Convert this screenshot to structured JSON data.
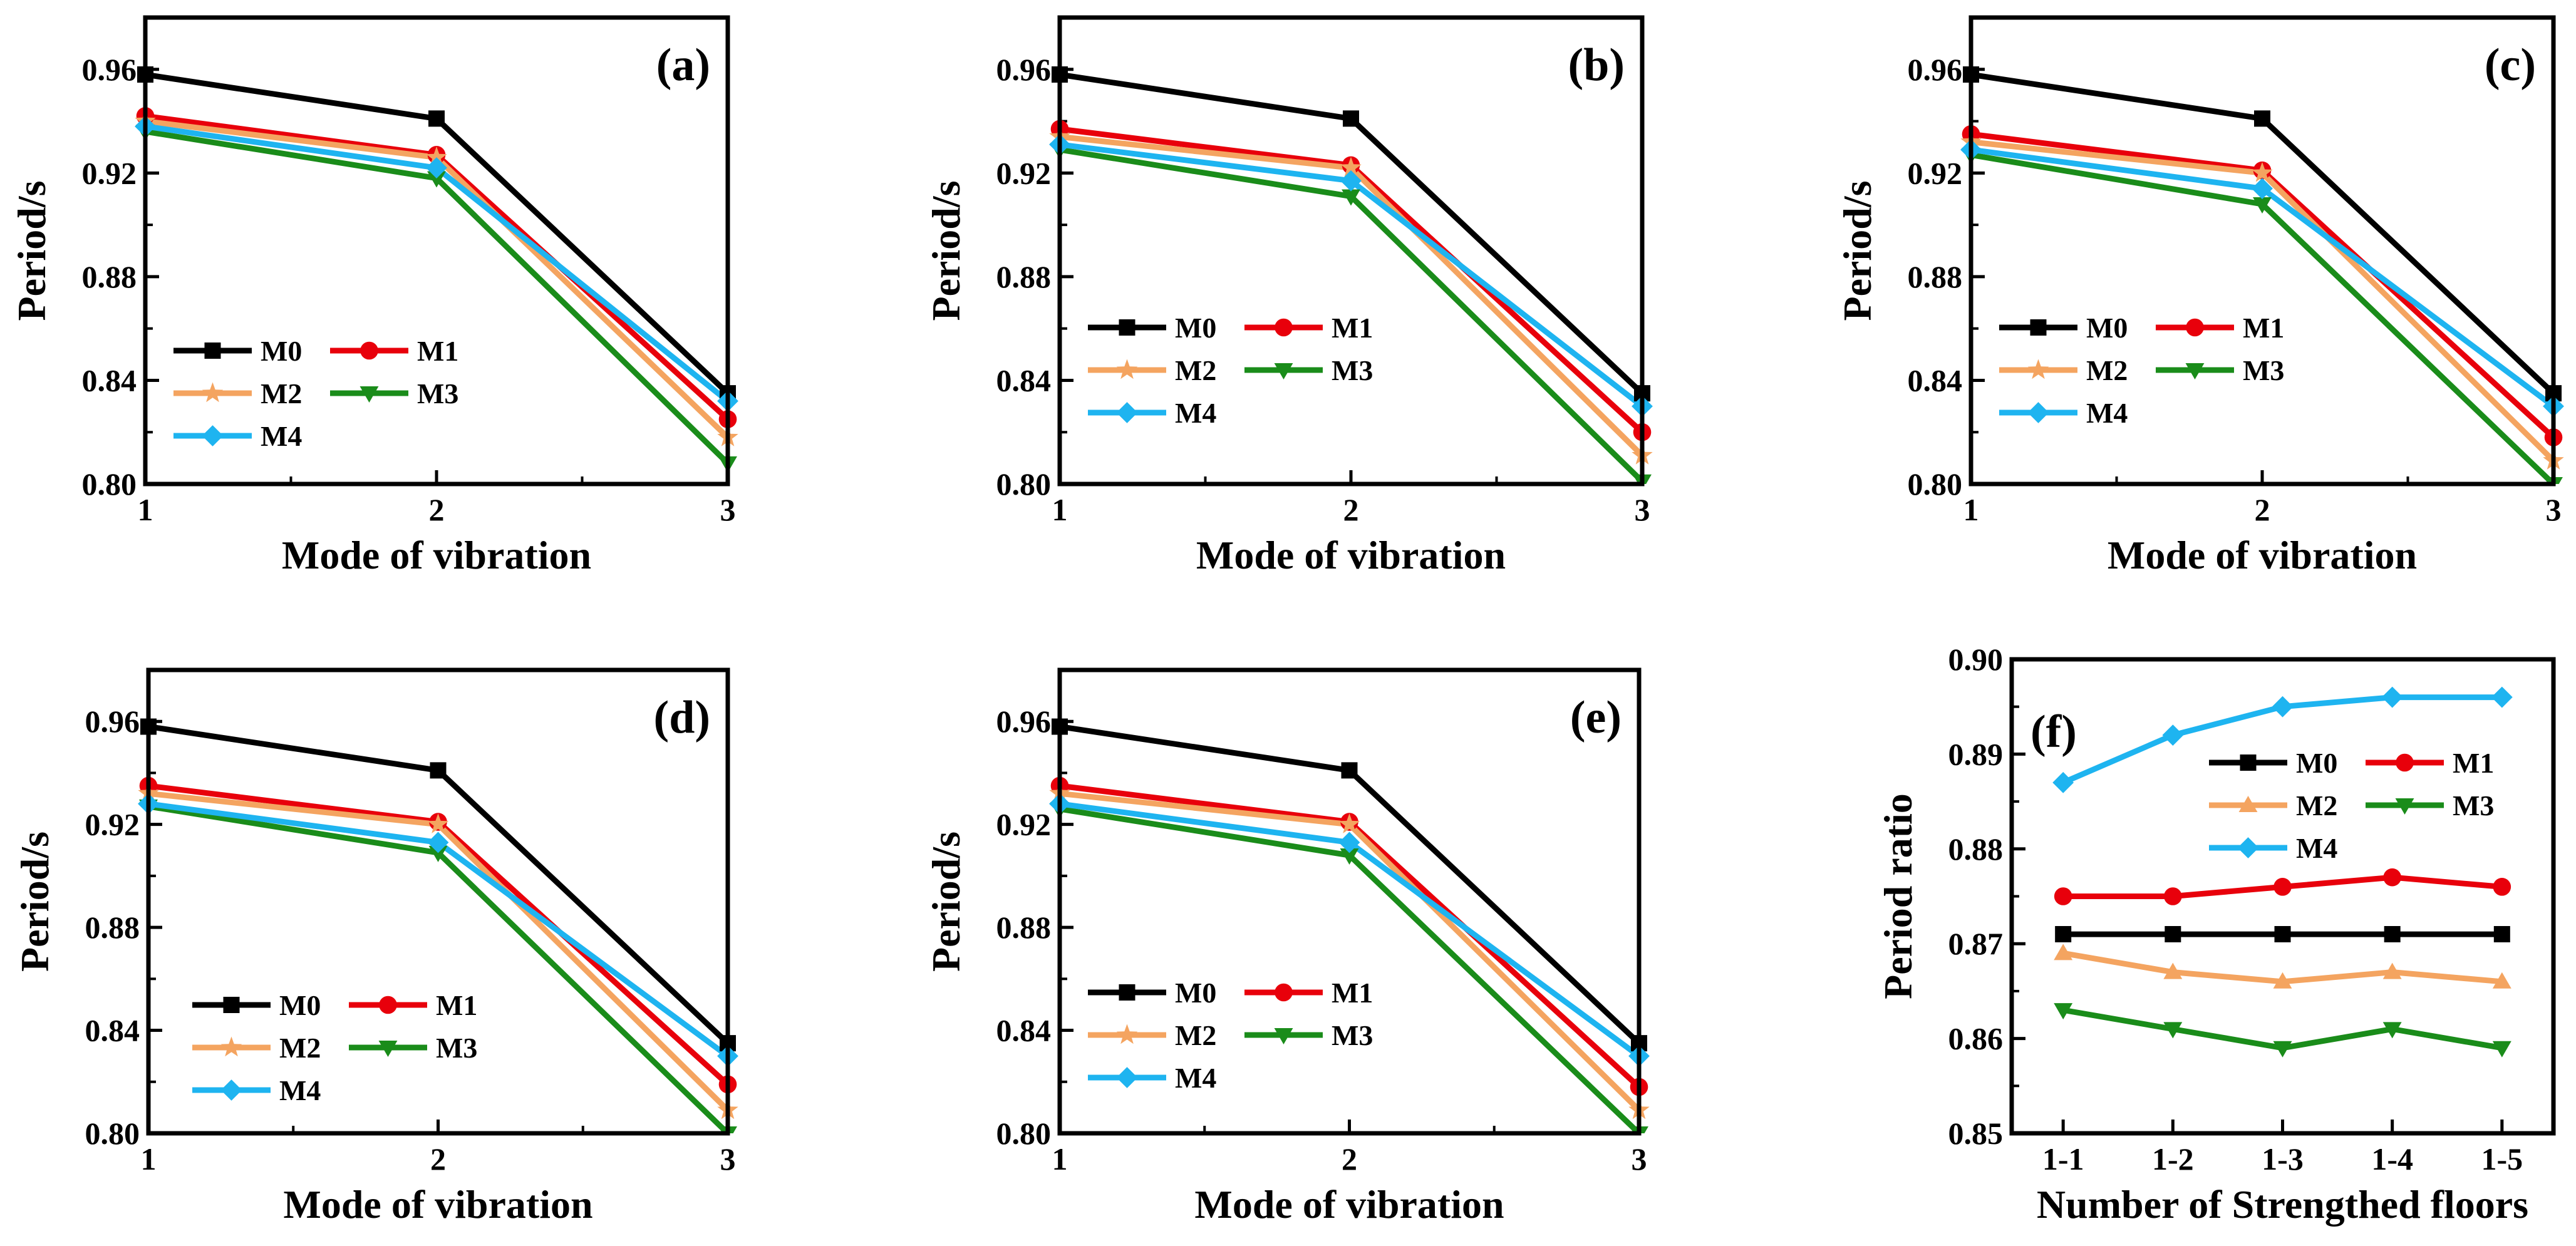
{
  "figure": {
    "description_colors": {
      "M0": "#000000",
      "M1": "#e8000b",
      "M2": "#f4a460",
      "M3": "#1a8c1a",
      "M4": "#1eb4f0"
    }
  },
  "chart_data": [
    {
      "panel": "(a)",
      "type": "line",
      "xlabel": "Mode of vibration",
      "ylabel": "Period/s",
      "x": [
        1,
        2,
        3
      ],
      "xticks": [
        "1",
        "2",
        "3"
      ],
      "ylim": [
        0.8,
        0.98
      ],
      "yticks": [
        "0.80",
        "0.84",
        "0.88",
        "0.92",
        "0.96"
      ],
      "legend": {
        "placement": "lower-left"
      },
      "series": [
        {
          "name": "M0",
          "marker": "square",
          "color": "#000000",
          "values": [
            0.958,
            0.941,
            0.835
          ]
        },
        {
          "name": "M1",
          "marker": "circle",
          "color": "#e8000b",
          "values": [
            0.942,
            0.927,
            0.825
          ]
        },
        {
          "name": "M2",
          "marker": "star",
          "color": "#f4a460",
          "values": [
            0.94,
            0.926,
            0.818
          ]
        },
        {
          "name": "M3",
          "marker": "triangle-down",
          "color": "#1a8c1a",
          "values": [
            0.936,
            0.918,
            0.808
          ]
        },
        {
          "name": "M4",
          "marker": "diamond",
          "color": "#1eb4f0",
          "values": [
            0.938,
            0.922,
            0.832
          ]
        }
      ]
    },
    {
      "panel": "(b)",
      "type": "line",
      "xlabel": "Mode of vibration",
      "ylabel": "Period/s",
      "x": [
        1,
        2,
        3
      ],
      "xticks": [
        "1",
        "2",
        "3"
      ],
      "ylim": [
        0.8,
        0.98
      ],
      "yticks": [
        "0.80",
        "0.84",
        "0.88",
        "0.92",
        "0.96"
      ],
      "legend": {
        "placement": "middle-left"
      },
      "series": [
        {
          "name": "M0",
          "marker": "square",
          "color": "#000000",
          "values": [
            0.958,
            0.941,
            0.835
          ]
        },
        {
          "name": "M1",
          "marker": "circle",
          "color": "#e8000b",
          "values": [
            0.937,
            0.923,
            0.82
          ]
        },
        {
          "name": "M2",
          "marker": "star",
          "color": "#f4a460",
          "values": [
            0.934,
            0.922,
            0.811
          ]
        },
        {
          "name": "M3",
          "marker": "triangle-down",
          "color": "#1a8c1a",
          "values": [
            0.929,
            0.911,
            0.801
          ]
        },
        {
          "name": "M4",
          "marker": "diamond",
          "color": "#1eb4f0",
          "values": [
            0.931,
            0.917,
            0.83
          ]
        }
      ]
    },
    {
      "panel": "(c)",
      "type": "line",
      "xlabel": "Mode of vibration",
      "ylabel": "Period/s",
      "x": [
        1,
        2,
        3
      ],
      "xticks": [
        "1",
        "2",
        "3"
      ],
      "ylim": [
        0.8,
        0.98
      ],
      "yticks": [
        "0.80",
        "0.84",
        "0.88",
        "0.92",
        "0.96"
      ],
      "legend": {
        "placement": "middle-left"
      },
      "series": [
        {
          "name": "M0",
          "marker": "square",
          "color": "#000000",
          "values": [
            0.958,
            0.941,
            0.835
          ]
        },
        {
          "name": "M1",
          "marker": "circle",
          "color": "#e8000b",
          "values": [
            0.935,
            0.921,
            0.818
          ]
        },
        {
          "name": "M2",
          "marker": "star",
          "color": "#f4a460",
          "values": [
            0.932,
            0.92,
            0.809
          ]
        },
        {
          "name": "M3",
          "marker": "triangle-down",
          "color": "#1a8c1a",
          "values": [
            0.927,
            0.908,
            0.8
          ]
        },
        {
          "name": "M4",
          "marker": "diamond",
          "color": "#1eb4f0",
          "values": [
            0.929,
            0.914,
            0.83
          ]
        }
      ]
    },
    {
      "panel": "(d)",
      "type": "line",
      "xlabel": "Mode of vibration",
      "ylabel": "Period/s",
      "x": [
        1,
        2,
        3
      ],
      "xticks": [
        "1",
        "2",
        "3"
      ],
      "ylim": [
        0.8,
        0.98
      ],
      "yticks": [
        "0.80",
        "0.84",
        "0.88",
        "0.92",
        "0.96"
      ],
      "legend": {
        "placement": "lower-left"
      },
      "series": [
        {
          "name": "M0",
          "marker": "square",
          "color": "#000000",
          "values": [
            0.958,
            0.941,
            0.835
          ]
        },
        {
          "name": "M1",
          "marker": "circle",
          "color": "#e8000b",
          "values": [
            0.935,
            0.921,
            0.819
          ]
        },
        {
          "name": "M2",
          "marker": "star",
          "color": "#f4a460",
          "values": [
            0.932,
            0.92,
            0.809
          ]
        },
        {
          "name": "M3",
          "marker": "triangle-down",
          "color": "#1a8c1a",
          "values": [
            0.927,
            0.909,
            0.8
          ]
        },
        {
          "name": "M4",
          "marker": "diamond",
          "color": "#1eb4f0",
          "values": [
            0.928,
            0.913,
            0.83
          ]
        }
      ]
    },
    {
      "panel": "(e)",
      "type": "line",
      "xlabel": "Mode of vibration",
      "ylabel": "Period/s",
      "x": [
        1,
        2,
        3
      ],
      "xticks": [
        "1",
        "2",
        "3"
      ],
      "ylim": [
        0.8,
        0.98
      ],
      "yticks": [
        "0.80",
        "0.84",
        "0.88",
        "0.92",
        "0.96"
      ],
      "legend": {
        "placement": "lower-left"
      },
      "series": [
        {
          "name": "M0",
          "marker": "square",
          "color": "#000000",
          "values": [
            0.958,
            0.941,
            0.835
          ]
        },
        {
          "name": "M1",
          "marker": "circle",
          "color": "#e8000b",
          "values": [
            0.935,
            0.921,
            0.818
          ]
        },
        {
          "name": "M2",
          "marker": "star",
          "color": "#f4a460",
          "values": [
            0.932,
            0.92,
            0.809
          ]
        },
        {
          "name": "M3",
          "marker": "triangle-down",
          "color": "#1a8c1a",
          "values": [
            0.926,
            0.908,
            0.8
          ]
        },
        {
          "name": "M4",
          "marker": "diamond",
          "color": "#1eb4f0",
          "values": [
            0.928,
            0.913,
            0.83
          ]
        }
      ]
    },
    {
      "panel": "(f)",
      "type": "line",
      "xlabel": "Number of Strengthed floors",
      "ylabel": "Period ratio",
      "categories": [
        "1-1",
        "1-2",
        "1-3",
        "1-4",
        "1-5"
      ],
      "ylim": [
        0.85,
        0.9
      ],
      "yticks": [
        "0.85",
        "0.86",
        "0.87",
        "0.88",
        "0.89",
        "0.90"
      ],
      "legend": {
        "placement": "upper-right"
      },
      "series": [
        {
          "name": "M0",
          "marker": "square",
          "color": "#000000",
          "values": [
            0.871,
            0.871,
            0.871,
            0.871,
            0.871
          ]
        },
        {
          "name": "M1",
          "marker": "circle",
          "color": "#e8000b",
          "values": [
            0.875,
            0.875,
            0.876,
            0.877,
            0.876
          ]
        },
        {
          "name": "M2",
          "marker": "triangle-up",
          "color": "#f4a460",
          "values": [
            0.869,
            0.867,
            0.866,
            0.867,
            0.866
          ]
        },
        {
          "name": "M3",
          "marker": "triangle-down",
          "color": "#1a8c1a",
          "values": [
            0.863,
            0.861,
            0.859,
            0.861,
            0.859
          ]
        },
        {
          "name": "M4",
          "marker": "diamond",
          "color": "#1eb4f0",
          "values": [
            0.887,
            0.892,
            0.895,
            0.896,
            0.896
          ]
        }
      ]
    }
  ]
}
